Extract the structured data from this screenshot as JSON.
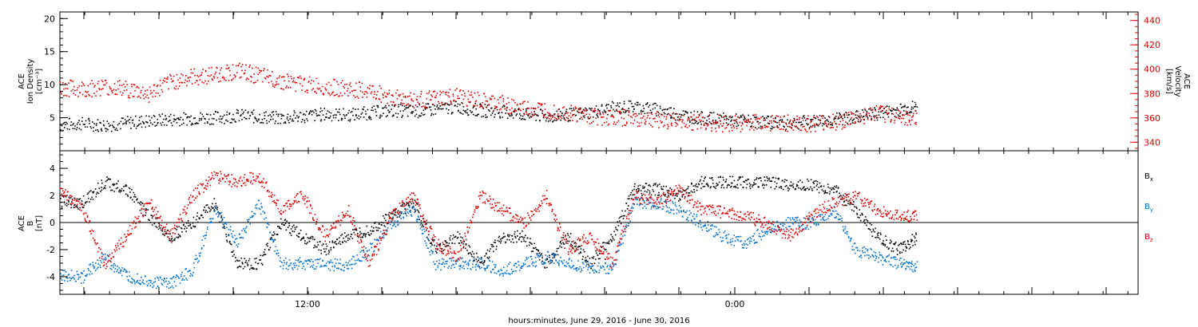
{
  "xlabel": "hours:minutes, June 29, 2016 - June 30, 2016",
  "x_ticks": [
    "12:00",
    "0:00"
  ],
  "colors": {
    "black": "#000000",
    "red": "#e00000",
    "blue": "#0070d0"
  },
  "chart_data": [
    {
      "type": "scatter",
      "panel": "top",
      "left_axis": {
        "label_lines": [
          "ACE",
          "Ion Density",
          "[cm⁻³]"
        ],
        "ticks": [
          "5",
          "10",
          "15",
          "20"
        ],
        "ylim": [
          0,
          21
        ]
      },
      "right_axis": {
        "label_lines": [
          "ACE",
          "Velocity",
          "[km/s]"
        ],
        "ticks": [
          "340",
          "360",
          "380",
          "400",
          "420",
          "440"
        ],
        "ylim": [
          333,
          447
        ]
      },
      "x_hours": [
        0,
        16
      ],
      "series": [
        {
          "color": "black",
          "axis": "left",
          "x": [
            0.0,
            1.0,
            2.0,
            3.0,
            4.0,
            5.0,
            6.0,
            7.0,
            8.0,
            9.0,
            10.0,
            11.0,
            12.0,
            13.0,
            14.0,
            15.0,
            16.0,
            17.0,
            18.0,
            19.0,
            20.0,
            21.0,
            22.0,
            23.0,
            24.0,
            25.0,
            26.0,
            27.0,
            28.0,
            29.0,
            30.0,
            31.0,
            32.0,
            33.0,
            34.0,
            35.0,
            36.0,
            37.0,
            38.0,
            38.8
          ],
          "y": [
            4.0,
            4.2,
            3.9,
            4.3,
            4.6,
            4.8,
            5.0,
            5.1,
            5.4,
            5.2,
            5.0,
            5.3,
            5.6,
            5.5,
            5.8,
            6.2,
            6.0,
            6.4,
            6.7,
            6.2,
            6.0,
            5.6,
            5.3,
            5.5,
            5.9,
            6.5,
            6.8,
            6.3,
            5.6,
            5.0,
            4.8,
            4.6,
            4.4,
            4.3,
            4.5,
            4.8,
            5.2,
            5.7,
            6.3,
            6.8
          ]
        },
        {
          "color": "red",
          "axis": "right",
          "x": [
            0.0,
            1.0,
            2.0,
            3.0,
            4.0,
            5.0,
            6.0,
            7.0,
            8.0,
            9.0,
            10.0,
            11.0,
            12.0,
            13.0,
            14.0,
            15.0,
            16.0,
            17.0,
            18.0,
            19.0,
            20.0,
            21.0,
            22.0,
            23.0,
            24.0,
            25.0,
            26.0,
            27.0,
            28.0,
            29.0,
            30.0,
            31.0,
            32.0,
            33.0,
            34.0,
            35.0,
            36.0,
            37.0,
            38.0,
            38.8
          ],
          "y": [
            385,
            384,
            386,
            384,
            380,
            390,
            394,
            396,
            399,
            395,
            391,
            388,
            386,
            384,
            382,
            378,
            375,
            376,
            378,
            374,
            372,
            368,
            367,
            365,
            362,
            361,
            360,
            359,
            358,
            357,
            356,
            356,
            357,
            356,
            355,
            357,
            360,
            364,
            362,
            360
          ]
        }
      ]
    },
    {
      "type": "scatter",
      "panel": "bottom",
      "left_axis": {
        "label_lines": [
          "ACE",
          "B",
          "[nT]"
        ],
        "ticks": [
          "-4",
          "-2",
          "0",
          "2",
          "4"
        ],
        "ylim": [
          -5.3,
          5.3
        ]
      },
      "zero_line": true,
      "legend": [
        {
          "text": "B",
          "sub": "x",
          "color": "black"
        },
        {
          "text": "B",
          "sub": "y",
          "color": "blue"
        },
        {
          "text": "B",
          "sub": "z",
          "color": "red"
        }
      ],
      "series": [
        {
          "color": "black",
          "name": "Bx",
          "x": [
            0.0,
            1.0,
            2.0,
            3.0,
            4.0,
            5.0,
            6.0,
            7.0,
            8.0,
            9.0,
            10.0,
            11.0,
            12.0,
            13.0,
            14.0,
            15.0,
            16.0,
            17.0,
            18.0,
            19.0,
            20.0,
            21.0,
            22.0,
            23.0,
            24.0,
            25.0,
            26.0,
            27.0,
            28.0,
            29.0,
            30.0,
            31.0,
            32.0,
            33.0,
            34.0,
            35.0,
            36.0,
            37.0,
            38.0,
            38.8
          ],
          "y": [
            1.5,
            1.5,
            3.0,
            2.5,
            0.5,
            -1.0,
            0.0,
            1.5,
            -3.0,
            -3.0,
            0.0,
            -1.0,
            -2.0,
            -1.0,
            -0.5,
            0.5,
            1.5,
            -2.0,
            -1.0,
            -3.0,
            -1.0,
            -1.0,
            -3.0,
            -1.0,
            -3.0,
            -1.0,
            2.5,
            2.5,
            2.0,
            3.0,
            3.0,
            3.0,
            3.0,
            2.8,
            2.8,
            2.5,
            1.0,
            -1.0,
            -2.0,
            -1.0
          ]
        },
        {
          "color": "blue",
          "name": "By",
          "x": [
            0.0,
            1.0,
            2.0,
            3.0,
            4.0,
            5.0,
            6.0,
            7.0,
            8.0,
            9.0,
            10.0,
            11.0,
            12.0,
            13.0,
            14.0,
            15.0,
            16.0,
            17.0,
            18.0,
            19.0,
            20.0,
            21.0,
            22.0,
            23.0,
            24.0,
            25.0,
            26.0,
            27.0,
            28.0,
            29.0,
            30.0,
            31.0,
            32.0,
            33.0,
            34.0,
            35.0,
            36.0,
            37.0,
            38.0,
            38.8
          ],
          "y": [
            -3.8,
            -4.0,
            -2.5,
            -4.0,
            -4.3,
            -4.5,
            -3.5,
            1.0,
            -1.5,
            1.5,
            -3.0,
            -3.0,
            -3.0,
            -3.2,
            -2.0,
            0.0,
            1.0,
            -3.0,
            -3.0,
            -3.0,
            -3.5,
            -3.0,
            -2.5,
            -3.0,
            -3.3,
            -3.3,
            1.5,
            1.5,
            1.0,
            0.0,
            -1.0,
            -1.5,
            -0.5,
            0.0,
            0.0,
            1.0,
            -2.0,
            -2.5,
            -3.0,
            -3.2
          ]
        },
        {
          "color": "red",
          "name": "Bz",
          "x": [
            0.0,
            1.0,
            2.0,
            3.0,
            4.0,
            5.0,
            6.0,
            7.0,
            8.0,
            9.0,
            10.0,
            11.0,
            12.0,
            13.0,
            14.0,
            15.0,
            16.0,
            17.0,
            18.0,
            19.0,
            20.0,
            21.0,
            22.0,
            23.0,
            24.0,
            25.0,
            26.0,
            27.0,
            28.0,
            29.0,
            30.0,
            31.0,
            32.0,
            33.0,
            34.0,
            35.0,
            36.0,
            37.0,
            38.0,
            38.8
          ],
          "y": [
            2.5,
            1.0,
            -3.0,
            -1.0,
            1.5,
            -1.0,
            2.0,
            3.5,
            3.0,
            3.5,
            1.0,
            2.0,
            -1.0,
            1.0,
            -3.0,
            0.5,
            2.0,
            -1.5,
            -2.5,
            2.0,
            1.0,
            0.0,
            2.0,
            -2.0,
            -1.0,
            -3.0,
            2.0,
            1.5,
            2.5,
            1.0,
            0.8,
            0.5,
            0.0,
            -1.0,
            0.5,
            1.5,
            2.0,
            1.0,
            0.5,
            0.5
          ]
        }
      ]
    }
  ]
}
